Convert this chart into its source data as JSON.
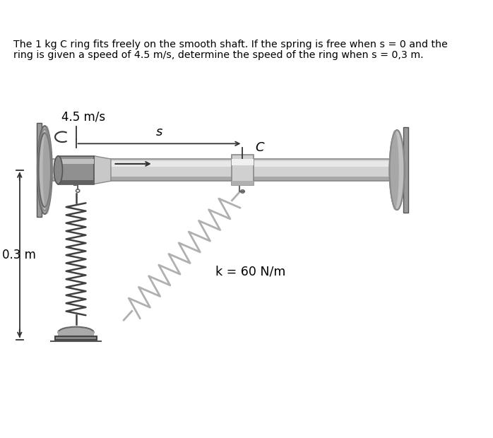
{
  "title_line1": "The 1 kg C ring fits freely on the smooth shaft. If the spring is free when s = 0 and the",
  "title_line2": "ring is given a speed of 4.5 m/s, determine the speed of the ring when s = 0,3 m.",
  "label_speed": "4.5 m/s",
  "label_s": "s",
  "label_c": "C",
  "label_distance": "0.3 m",
  "label_spring": "k = 60 N/m",
  "bg_color": "#ffffff",
  "shaft_body": "#d2d2d2",
  "shaft_top": "#e8e8e8",
  "shaft_bot": "#a8a8a8",
  "shaft_line": "#888888",
  "wall_face": "#b0b0b0",
  "wall_rim": "#888888",
  "wall_bg": "#d8d8d8",
  "collar_face": "#909090",
  "collar_top": "#c0c0c0",
  "collar_bot": "#606060",
  "ring_face": "#d0d0d0",
  "ring_edge": "#888888",
  "spring1_color": "#404040",
  "spring2_color": "#b0b0b0",
  "text_color": "#000000",
  "dim_color": "#333333"
}
